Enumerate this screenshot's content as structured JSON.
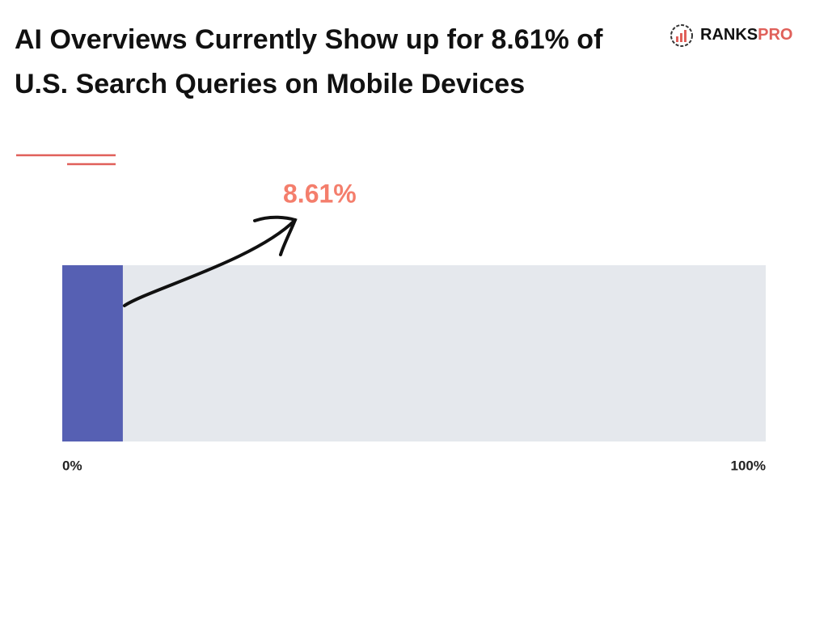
{
  "chart_data": {
    "type": "bar",
    "title": "AI Overviews Currently Show up for 8.61% of U.S. Search Queries on Mobile Devices",
    "logo_text": [
      "RANKS",
      "PRO"
    ],
    "values": [
      8.61
    ],
    "value_labels": [
      "8.61%"
    ],
    "color": "#5660b3",
    "track_color": "#e5e8ed",
    "label_color": "#f47e6c",
    "xlim": [
      0,
      100
    ],
    "xticks": [
      {
        "value": 0,
        "label": "0%"
      },
      {
        "value": 100,
        "label": "100%"
      }
    ]
  }
}
